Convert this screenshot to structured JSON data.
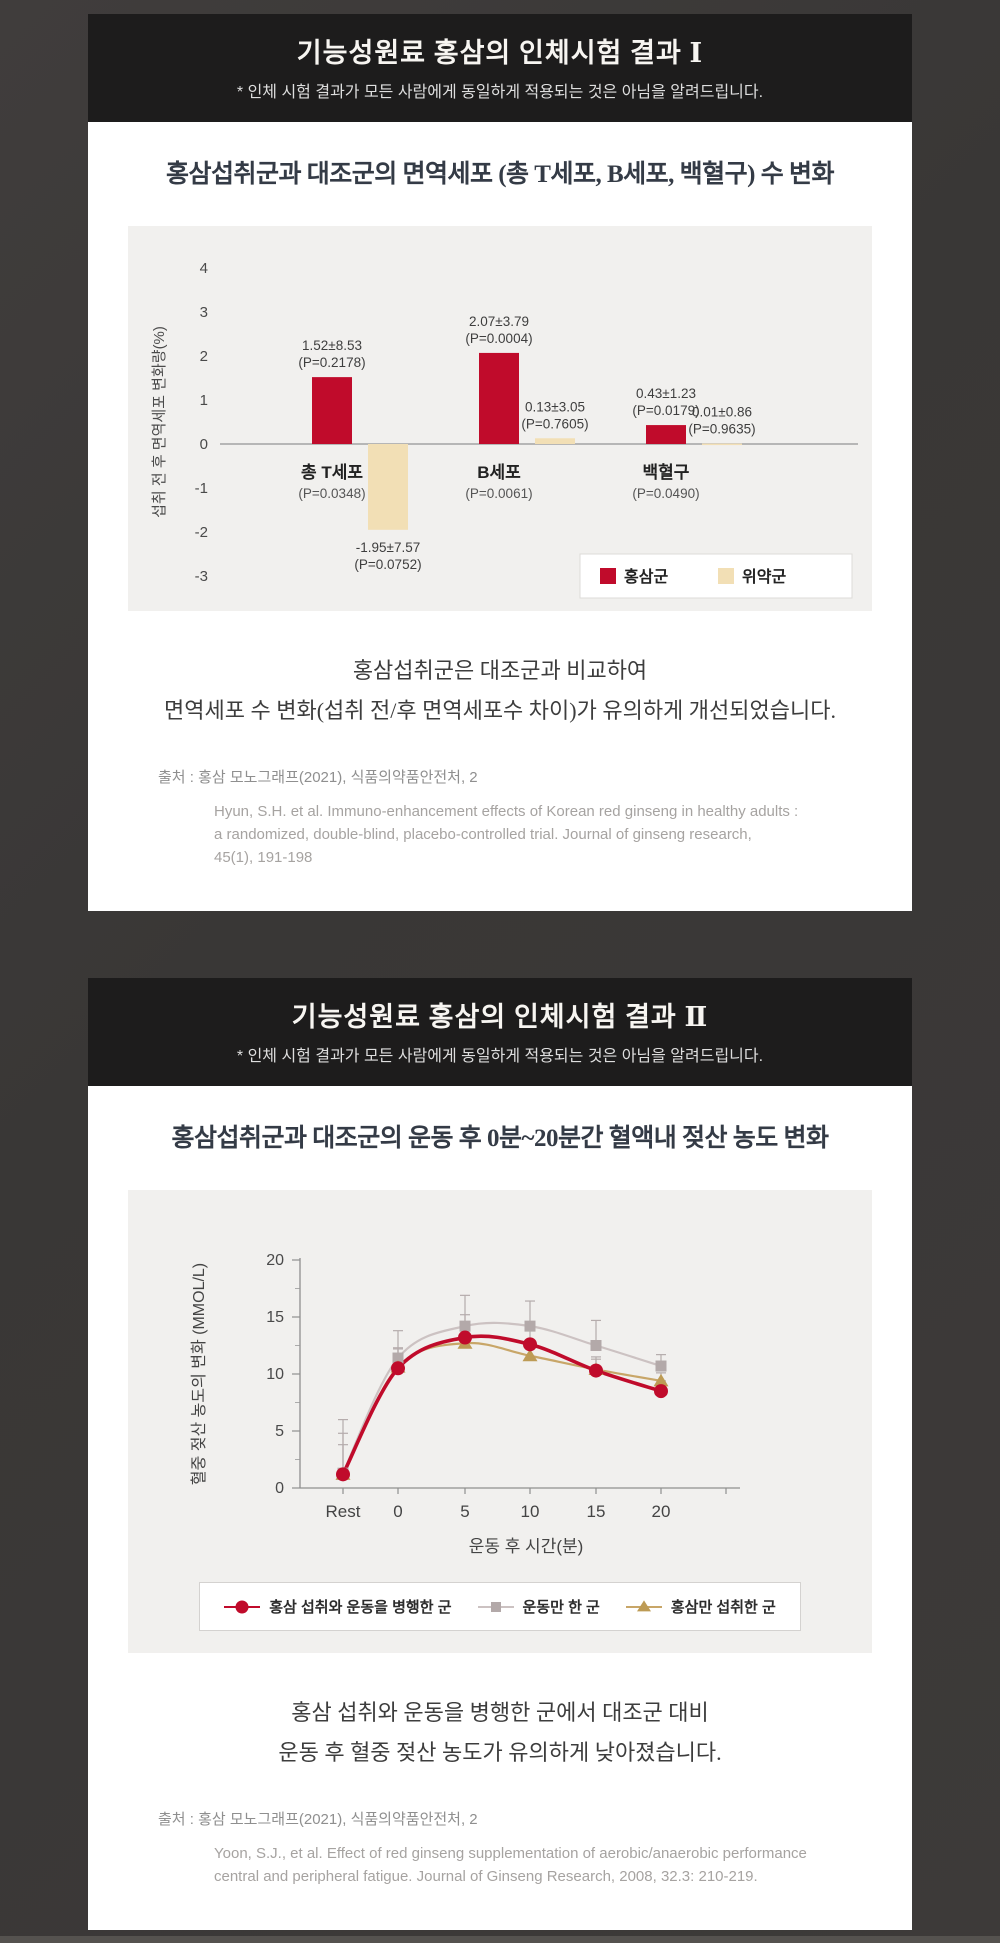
{
  "section1": {
    "header": {
      "title": "기능성원료 홍삼의 인체시험 결과 Ⅰ",
      "subtitle": "* 인체 시험 결과가 모든 사람에게 동일하게 적용되는 것은 아님을 알려드립니다."
    },
    "chart_title": "홍삼섭취군과 대조군의 면역세포 (총 T세포, B세포, 백혈구) 수 변화",
    "summary": {
      "line1": "홍삼섭취군은 대조군과 비교하여",
      "line2": "면역세포 수 변화(섭취 전/후 면역세포수 차이)가 유의하게 개선되었습니다."
    },
    "source": "출처 : 홍삼 모노그래프(2021), 식품의약품안전처, 2",
    "citation": [
      "Hyun, S.H. et al. Immuno-enhancement effects of Korean red ginseng in healthy adults :",
      "a randomized, double-blind, placebo-controlled trial. Journal of ginseng research,",
      "45(1), 191-198"
    ]
  },
  "section2": {
    "header": {
      "title": "기능성원료 홍삼의 인체시험 결과 Ⅱ",
      "subtitle": "* 인체 시험 결과가 모든 사람에게 동일하게 적용되는 것은 아님을 알려드립니다."
    },
    "chart_title": "홍삼섭취군과 대조군의 운동 후 0분~20분간 혈액내 젖산 농도 변화",
    "summary": {
      "line1": "홍삼 섭취와 운동을 병행한 군에서 대조군 대비",
      "line2": "운동 후 혈중 젖산 농도가 유의하게 낮아졌습니다."
    },
    "source": "출처 : 홍삼 모노그래프(2021), 식품의약품안전처, 2",
    "citation": [
      "Yoon, S.J., et al. Effect of red ginseng supplementation of aerobic/anaerobic performance",
      "central and peripheral fatigue. Journal of Ginseng Research, 2008, 32.3: 210-219."
    ]
  },
  "chart_data": [
    {
      "type": "bar",
      "title": "홍삼섭취군과 대조군의 면역세포 (총 T세포, B세포, 백혈구) 수 변화",
      "ylabel": "섭취 전 후 면역세포 변화량(%)",
      "ylim": [
        -3,
        4
      ],
      "yticks": [
        4,
        3,
        2,
        1,
        0,
        -1,
        -2,
        -3
      ],
      "grid": false,
      "legend_position": "bottom-right",
      "groups": [
        {
          "category": "총 T세포",
          "category_p": "(P=0.0348)",
          "bars": [
            {
              "series": "홍삼군",
              "value": 1.52,
              "label": "1.52±8.53",
              "p": "(P=0.2178)"
            },
            {
              "series": "위약군",
              "value": -1.95,
              "label": "-1.95±7.57",
              "p": "(P=0.0752)"
            }
          ]
        },
        {
          "category": "B세포",
          "category_p": "(P=0.0061)",
          "bars": [
            {
              "series": "홍삼군",
              "value": 2.07,
              "label": "2.07±3.79",
              "p": "(P=0.0004)"
            },
            {
              "series": "위약군",
              "value": 0.13,
              "label": "0.13±3.05",
              "p": "(P=0.7605)"
            }
          ]
        },
        {
          "category": "백혈구",
          "category_p": "(P=0.0490)",
          "bars": [
            {
              "series": "홍삼군",
              "value": 0.43,
              "label": "0.43±1.23",
              "p": "(P=0.0179)"
            },
            {
              "series": "위약군",
              "value": 0.01,
              "label": "0.01±0.86",
              "p": "(P=0.9635)"
            }
          ]
        }
      ],
      "legend": [
        {
          "label": "홍삼군",
          "color": "#c00b2b"
        },
        {
          "label": "위약군",
          "color": "#f2dfb5"
        }
      ]
    },
    {
      "type": "line",
      "title": "홍삼섭취군과 대조군의 운동 후 0분~20분간 혈액내 젖산 농도 변화",
      "xlabel": "운동 후 시간(분)",
      "ylabel": "혈중 젖산 농도의 변화 (MMOL/L)",
      "categories": [
        "Rest",
        "0",
        "5",
        "10",
        "15",
        "20"
      ],
      "ylim": [
        0,
        20
      ],
      "yticks": [
        0,
        5,
        10,
        15,
        20
      ],
      "grid": false,
      "legend_position": "bottom",
      "series": [
        {
          "name": "홍삼 섭취와 운동을 병행한 군",
          "marker": "circle",
          "color": "#c00b2b",
          "values": [
            1.2,
            10.5,
            13.2,
            12.6,
            10.3,
            8.5
          ],
          "errors_up": [
            2.6,
            1.8,
            2.0,
            1.5,
            1.2,
            0.9
          ]
        },
        {
          "name": "운동만 한 군",
          "marker": "square",
          "color": "#ccc2c2",
          "marker_color": "#b3a9a9",
          "values": [
            1.3,
            11.4,
            14.2,
            14.2,
            12.5,
            10.7
          ],
          "errors_up": [
            4.7,
            2.4,
            2.7,
            2.2,
            2.2,
            1.0
          ]
        },
        {
          "name": "홍삼만 섭취한 군",
          "marker": "triangle",
          "color": "#c8a668",
          "marker_color": "#bd9b55",
          "values": [
            1.2,
            10.6,
            12.7,
            11.6,
            10.4,
            9.4
          ],
          "errors_up": [
            3.6,
            1.6,
            1.4,
            1.2,
            0.9,
            0.7
          ]
        }
      ]
    }
  ]
}
